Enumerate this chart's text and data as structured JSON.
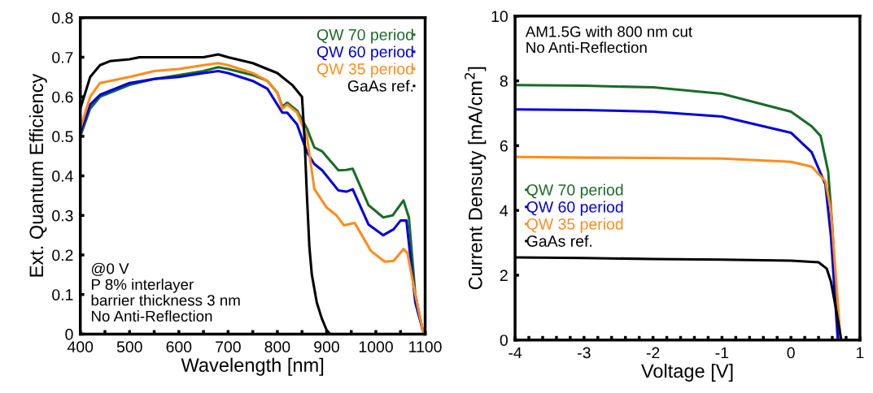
{
  "chart_data": [
    {
      "type": "line",
      "xlabel": "Wavelength [nm]",
      "ylabel": "Ext. Quantum Efficiency",
      "xlim": [
        400,
        1100
      ],
      "ylim": [
        0,
        0.8
      ],
      "xticks": [
        400,
        {
          "value": 450,
          "label": null
        },
        500,
        {
          "value": 550,
          "label": null
        },
        600,
        {
          "value": 650,
          "label": null
        },
        700,
        {
          "value": 750,
          "label": null
        },
        800,
        {
          "value": 850,
          "label": null
        },
        900,
        {
          "value": 950,
          "label": null
        },
        1000,
        {
          "value": 1050,
          "label": null
        },
        1100
      ],
      "yticks": [
        0,
        0.1,
        0.2,
        0.3,
        0.4,
        0.5,
        0.6,
        0.7,
        0.8
      ],
      "grid": false,
      "legend": "top right",
      "marker": "none",
      "line_style": "solid",
      "annotations": [
        "@0 V",
        "P 8% interlayer",
        "barrier thickness 3 nm",
        "No Anti-Reflection"
      ],
      "series": [
        {
          "name": "QW 70 period",
          "color": "#1a6b2a",
          "x": [
            400,
            420,
            440,
            460,
            500,
            550,
            600,
            650,
            680,
            700,
            750,
            780,
            800,
            810,
            820,
            840,
            860,
            875,
            891,
            924,
            940,
            953,
            985,
            1015,
            1034,
            1056,
            1067,
            1080,
            1095,
            1100
          ],
          "values": [
            0.5,
            0.57,
            0.6,
            0.61,
            0.63,
            0.645,
            0.655,
            0.665,
            0.675,
            0.67,
            0.655,
            0.64,
            0.61,
            0.575,
            0.585,
            0.565,
            0.52,
            0.472,
            0.462,
            0.414,
            0.415,
            0.418,
            0.326,
            0.295,
            0.3,
            0.338,
            0.295,
            0.1,
            0.01,
            0
          ]
        },
        {
          "name": "QW 60 period",
          "color": "#0000e0",
          "x": [
            400,
            420,
            440,
            500,
            550,
            600,
            650,
            680,
            700,
            750,
            780,
            800,
            810,
            820,
            840,
            860,
            875,
            891,
            924,
            940,
            953,
            985,
            1015,
            1036,
            1050,
            1062,
            1080,
            1095,
            1100
          ],
          "values": [
            0.51,
            0.58,
            0.605,
            0.635,
            0.645,
            0.65,
            0.66,
            0.665,
            0.66,
            0.64,
            0.62,
            0.58,
            0.56,
            0.56,
            0.53,
            0.46,
            0.43,
            0.414,
            0.363,
            0.36,
            0.366,
            0.277,
            0.25,
            0.265,
            0.287,
            0.287,
            0.08,
            0.01,
            0
          ]
        },
        {
          "name": "QW 35 period",
          "color": "#ff8c1a",
          "x": [
            400,
            420,
            440,
            500,
            550,
            600,
            650,
            680,
            700,
            750,
            780,
            800,
            810,
            820,
            840,
            860,
            875,
            900,
            920,
            935,
            957,
            990,
            1018,
            1036,
            1056,
            1064,
            1080,
            1095,
            1100
          ],
          "values": [
            0.52,
            0.6,
            0.635,
            0.65,
            0.665,
            0.67,
            0.68,
            0.685,
            0.68,
            0.66,
            0.64,
            0.61,
            0.57,
            0.58,
            0.56,
            0.5,
            0.367,
            0.32,
            0.3,
            0.275,
            0.281,
            0.21,
            0.183,
            0.185,
            0.215,
            0.205,
            0.1,
            0.01,
            0
          ]
        },
        {
          "name": "GaAs ref.",
          "color": "#000000",
          "x": [
            400,
            420,
            440,
            460,
            500,
            520,
            600,
            650,
            680,
            700,
            750,
            800,
            830,
            850,
            855,
            860,
            865,
            870,
            880,
            890,
            900,
            907
          ],
          "values": [
            0.57,
            0.65,
            0.68,
            0.69,
            0.695,
            0.7,
            0.7,
            0.7,
            0.707,
            0.7,
            0.685,
            0.66,
            0.63,
            0.6,
            0.5,
            0.35,
            0.22,
            0.15,
            0.08,
            0.04,
            0.01,
            0
          ]
        }
      ]
    },
    {
      "type": "line",
      "xlabel": "Voltage [V]",
      "ylabel": "Current Densuty [mA/cm$^{2}$]",
      "xlim": [
        -4,
        1
      ],
      "ylim": [
        0,
        10
      ],
      "xticks": [
        -4,
        {
          "value": -3.8,
          "label": null
        },
        {
          "value": -3.6,
          "label": null
        },
        {
          "value": -3.4,
          "label": null
        },
        {
          "value": -3.2,
          "label": null
        },
        -3,
        {
          "value": -2.8,
          "label": null
        },
        {
          "value": -2.6,
          "label": null
        },
        {
          "value": -2.4,
          "label": null
        },
        {
          "value": -2.2,
          "label": null
        },
        -2,
        {
          "value": -1.8,
          "label": null
        },
        {
          "value": -1.6,
          "label": null
        },
        {
          "value": -1.4,
          "label": null
        },
        {
          "value": -1.2,
          "label": null
        },
        -1,
        {
          "value": -0.8,
          "label": null
        },
        {
          "value": -0.6,
          "label": null
        },
        {
          "value": -0.4,
          "label": null
        },
        {
          "value": -0.2,
          "label": null
        },
        0,
        {
          "value": 0.2,
          "label": null
        },
        {
          "value": 0.4,
          "label": null
        },
        {
          "value": 0.6,
          "label": null
        },
        {
          "value": 0.8,
          "label": null
        },
        1
      ],
      "yticks": [
        0,
        2,
        4,
        6,
        8,
        10
      ],
      "grid": false,
      "legend": "left",
      "marker": "none",
      "line_style": "solid",
      "annotations": [
        "AM1.5G with 800 nm cut",
        "No Anti-Reflection"
      ],
      "series": [
        {
          "name": "QW 70 period",
          "color": "#1a6b2a",
          "x": [
            -4,
            -3,
            -2,
            -1,
            0,
            0.3,
            0.43,
            0.54,
            0.6,
            0.65,
            0.69
          ],
          "values": [
            7.87,
            7.85,
            7.8,
            7.6,
            7.05,
            6.6,
            6.3,
            5.2,
            3.5,
            1.5,
            0
          ]
        },
        {
          "name": "QW 60 period",
          "color": "#0000e0",
          "x": [
            -4,
            -3,
            -2,
            -1,
            0,
            0.3,
            0.5,
            0.58,
            0.63,
            0.68
          ],
          "values": [
            7.12,
            7.1,
            7.05,
            6.9,
            6.4,
            5.8,
            4.8,
            3.2,
            1.6,
            0
          ]
        },
        {
          "name": "QW 35 period",
          "color": "#ff8c1a",
          "x": [
            -4,
            -3,
            -2,
            -1,
            0,
            0.3,
            0.5,
            0.58,
            0.65,
            0.72
          ],
          "values": [
            5.65,
            5.63,
            5.62,
            5.6,
            5.5,
            5.35,
            4.9,
            4.0,
            2.0,
            0
          ]
        },
        {
          "name": "GaAs ref.",
          "color": "#000000",
          "x": [
            -4,
            -3,
            -2,
            -1,
            0,
            0.4,
            0.52,
            0.58,
            0.65,
            0.73
          ],
          "values": [
            2.55,
            2.53,
            2.5,
            2.48,
            2.45,
            2.4,
            2.2,
            1.8,
            1.0,
            0
          ]
        }
      ]
    }
  ]
}
